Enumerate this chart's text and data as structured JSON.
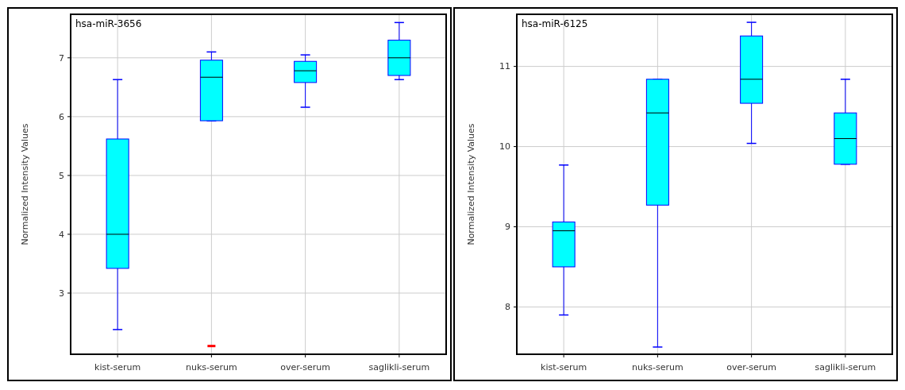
{
  "chart_data": [
    {
      "type": "box",
      "title": "hsa-miR-3656",
      "ylabel": "Normalized Intensity Values",
      "categories": [
        "kist-serum",
        "nuks-serum",
        "over-serum",
        "saglikli-serum"
      ],
      "color": "#00ffff",
      "ylim": [
        1.96,
        7.74
      ],
      "yticks": [
        3,
        4,
        5,
        6,
        7
      ],
      "grid": true,
      "boxes": [
        {
          "low": 2.38,
          "q1": 3.42,
          "median": 4.0,
          "q3": 5.62,
          "high": 6.63
        },
        {
          "low": 5.93,
          "q1": 5.93,
          "median": 6.67,
          "q3": 6.96,
          "high": 7.1,
          "outliers": [
            2.1
          ]
        },
        {
          "low": 6.16,
          "q1": 6.58,
          "median": 6.78,
          "q3": 6.94,
          "high": 7.05
        },
        {
          "low": 6.63,
          "q1": 6.7,
          "median": 7.0,
          "q3": 7.3,
          "high": 7.6
        }
      ]
    },
    {
      "type": "box",
      "title": "hsa-miR-6125",
      "ylabel": "Normalized Intensity Values",
      "categories": [
        "kist-serum",
        "nuks-serum",
        "over-serum",
        "saglikli-serum"
      ],
      "color": "#00ffff",
      "ylim": [
        7.41,
        11.65
      ],
      "yticks": [
        8,
        9,
        10,
        11
      ],
      "grid": true,
      "boxes": [
        {
          "low": 7.9,
          "q1": 8.5,
          "median": 8.95,
          "q3": 9.06,
          "high": 9.77
        },
        {
          "low": 7.5,
          "q1": 9.27,
          "median": 10.42,
          "q3": 10.84,
          "high": 10.84
        },
        {
          "low": 10.04,
          "q1": 10.54,
          "median": 10.84,
          "q3": 11.38,
          "high": 11.55
        },
        {
          "low": 9.78,
          "q1": 9.78,
          "median": 10.1,
          "q3": 10.42,
          "high": 10.84
        }
      ]
    }
  ]
}
